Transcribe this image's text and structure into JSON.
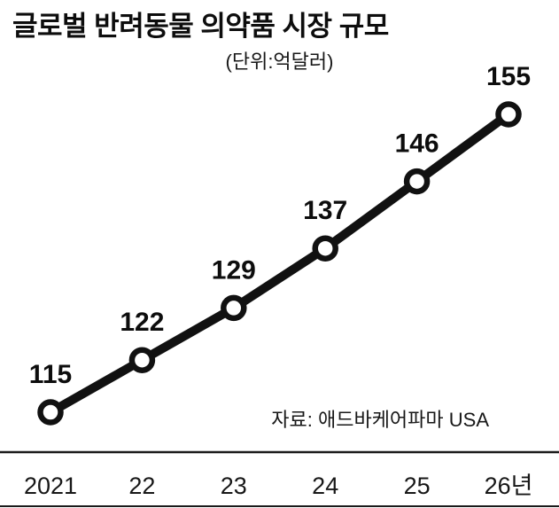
{
  "header": {
    "title": "글로벌 반려동물 의약품 시장 규모",
    "unit_label": "(단위:억달러)"
  },
  "footer": {
    "source_label": "자료: 애드바케어파마 USA"
  },
  "colors": {
    "line": "#111111",
    "marker_fill": "#ffffff",
    "axis_line": "#1a1a1a",
    "background": "#ffffff"
  },
  "chart_data": {
    "type": "line",
    "title": "글로벌 반려동물 의약품 시장 규모",
    "unit": "억달러",
    "categories": [
      "2021",
      "22",
      "23",
      "24",
      "25",
      "26년"
    ],
    "values": [
      115,
      122,
      129,
      137,
      146,
      155
    ],
    "ylim": [
      110,
      160
    ],
    "grid": false,
    "legend": false,
    "marker_style": "open-circle",
    "line_color": "#111111",
    "source": "자료: 애드바케어파마 USA"
  }
}
